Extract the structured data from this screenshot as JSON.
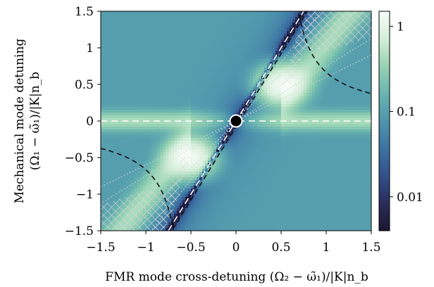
{
  "chart_data": {
    "type": "heatmap",
    "title": "",
    "xlabel": "FMR mode cross-detuning (Ω₂ − ω̃₁)/|K|n_b",
    "ylabel_line1": "Mechanical mode detuning",
    "ylabel_line2": "(Ω₁ − ω̃₁)/|K|n_b",
    "xlim": [
      -1.5,
      1.5
    ],
    "ylim": [
      -1.5,
      1.5
    ],
    "xticks": [
      -1.5,
      -1,
      -0.5,
      0,
      0.5,
      1,
      1.5
    ],
    "xtick_labels": [
      "−1.5",
      "−1",
      "−0.5",
      "0",
      "0.5",
      "1",
      "1.5"
    ],
    "yticks": [
      -1.5,
      -1,
      -0.5,
      0,
      0.5,
      1,
      1.5
    ],
    "ytick_labels": [
      "−1.5",
      "−1",
      "−0.5",
      "0",
      "0.5",
      "1",
      "1.5"
    ],
    "colorbar": {
      "scale": "log",
      "range": [
        0.004,
        1.5
      ],
      "ticks": [
        0.01,
        0.1,
        1
      ],
      "tick_labels": [
        "0.01",
        "0.1",
        "1"
      ],
      "colormap": [
        "#1b1530",
        "#2b2c5c",
        "#33508b",
        "#3d73a3",
        "#4f95ad",
        "#6ab4b0",
        "#96d2b2",
        "#d4eed9",
        "#f8fcf8"
      ]
    },
    "overlays": {
      "white_dashed_lines": [
        {
          "type": "line",
          "slope": 0,
          "intercept": 0
        },
        {
          "type": "line",
          "slope": 2,
          "intercept": 0
        }
      ],
      "black_dashed_curves": "y = x/(2(x^2 - 0.25)) hyperbola branches plus the line y = 2x",
      "hatched_regions": "crosshatched unstable regions near (±0.5, ±0.5) and corners",
      "marker": {
        "x": 0,
        "y": 0
      }
    },
    "grid": false,
    "legend": "none"
  }
}
